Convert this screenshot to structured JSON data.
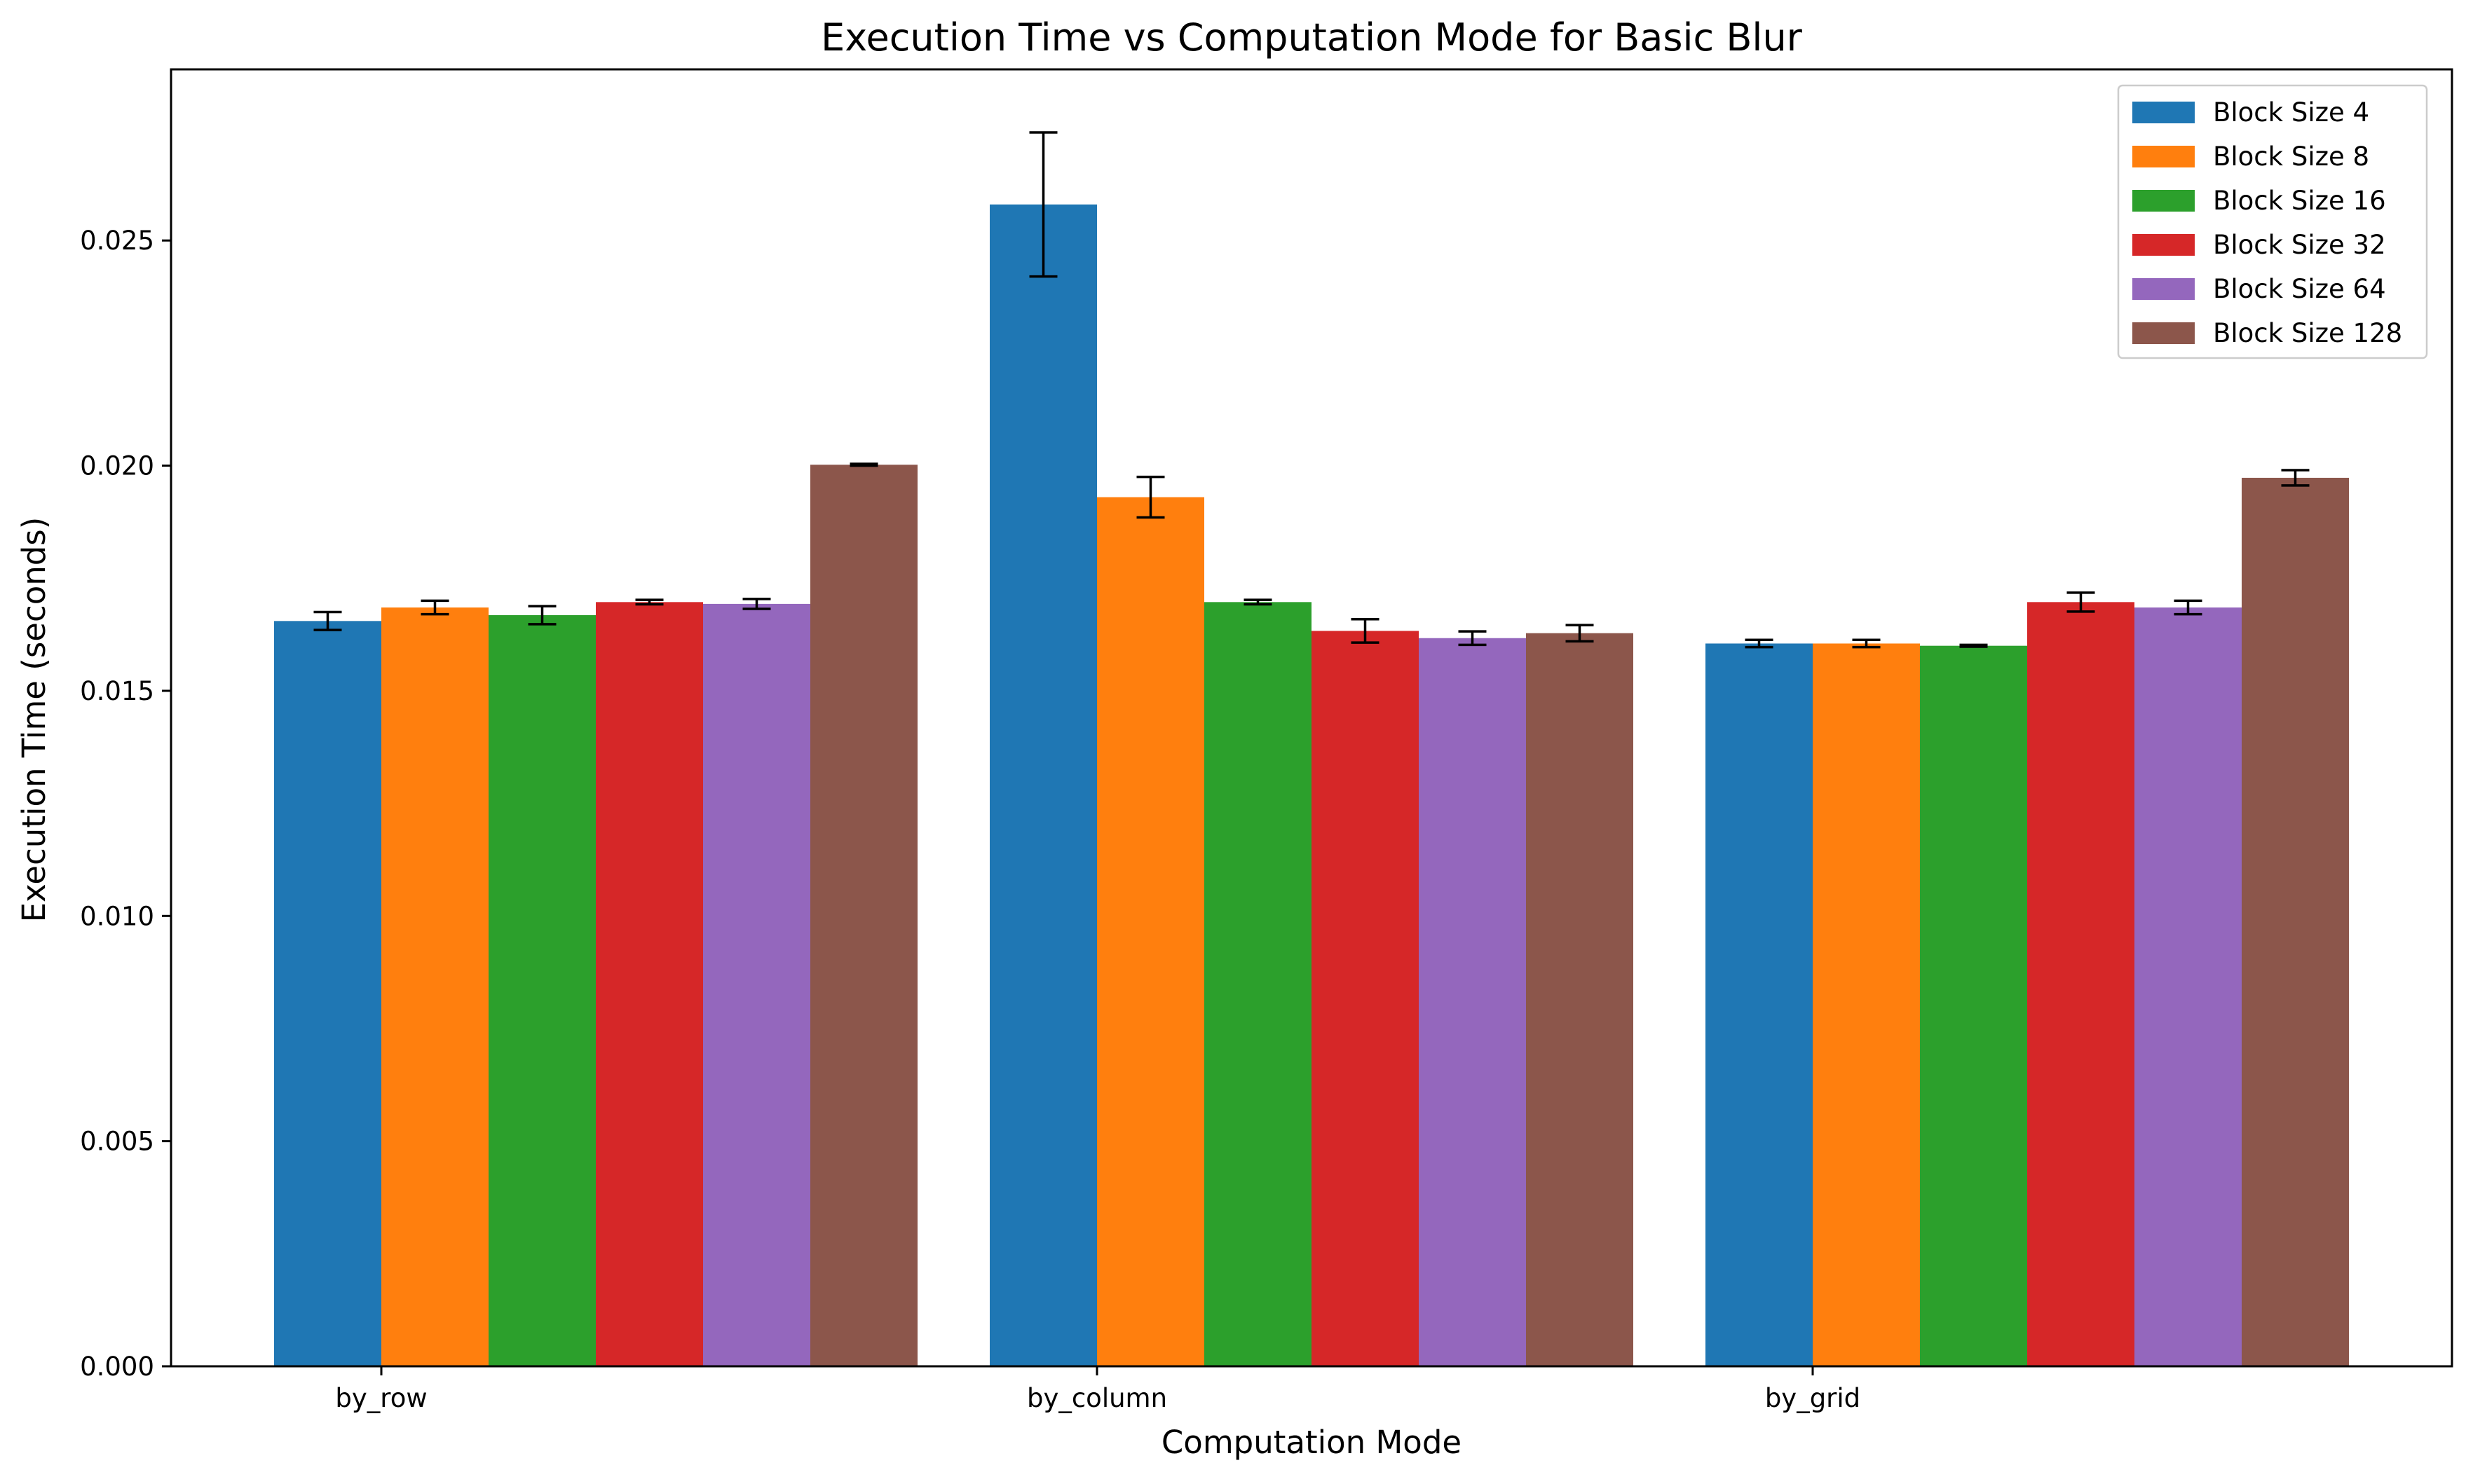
{
  "chart_data": {
    "type": "bar",
    "title": "Execution Time vs Computation Mode for Basic Blur",
    "xlabel": "Computation Mode",
    "ylabel": "Execution Time (seconds)",
    "categories": [
      "by_row",
      "by_column",
      "by_grid"
    ],
    "ylim": [
      0,
      0.0288
    ],
    "yticks": [
      {
        "value": 0.0,
        "label": "0.000"
      },
      {
        "value": 0.005,
        "label": "0.005"
      },
      {
        "value": 0.01,
        "label": "0.010"
      },
      {
        "value": 0.015,
        "label": "0.015"
      },
      {
        "value": 0.02,
        "label": "0.020"
      },
      {
        "value": 0.025,
        "label": "0.025"
      }
    ],
    "grid": false,
    "legend_position": "top-right",
    "series": [
      {
        "name": "Block Size 4",
        "color": "#1f77b4",
        "values": [
          0.01655,
          0.0258,
          0.01605
        ],
        "errors": [
          0.0002,
          0.0016,
          8e-05
        ]
      },
      {
        "name": "Block Size 8",
        "color": "#ff7f0e",
        "values": [
          0.01685,
          0.0193,
          0.01605
        ],
        "errors": [
          0.00015,
          0.00045,
          8e-05
        ]
      },
      {
        "name": "Block Size 16",
        "color": "#2ca02c",
        "values": [
          0.01668,
          0.01697,
          0.016
        ],
        "errors": [
          0.0002,
          5e-05,
          2e-05
        ]
      },
      {
        "name": "Block Size 32",
        "color": "#d62728",
        "values": [
          0.01697,
          0.01633,
          0.01697
        ],
        "errors": [
          5e-05,
          0.00026,
          0.00021
        ]
      },
      {
        "name": "Block Size 64",
        "color": "#9467bd",
        "values": [
          0.01693,
          0.01617,
          0.01685
        ],
        "errors": [
          0.00011,
          0.00015,
          0.00015
        ]
      },
      {
        "name": "Block Size 128",
        "color": "#8c564b",
        "values": [
          0.02002,
          0.01628,
          0.01973
        ],
        "errors": [
          2e-05,
          0.00018,
          0.00017
        ]
      }
    ]
  }
}
